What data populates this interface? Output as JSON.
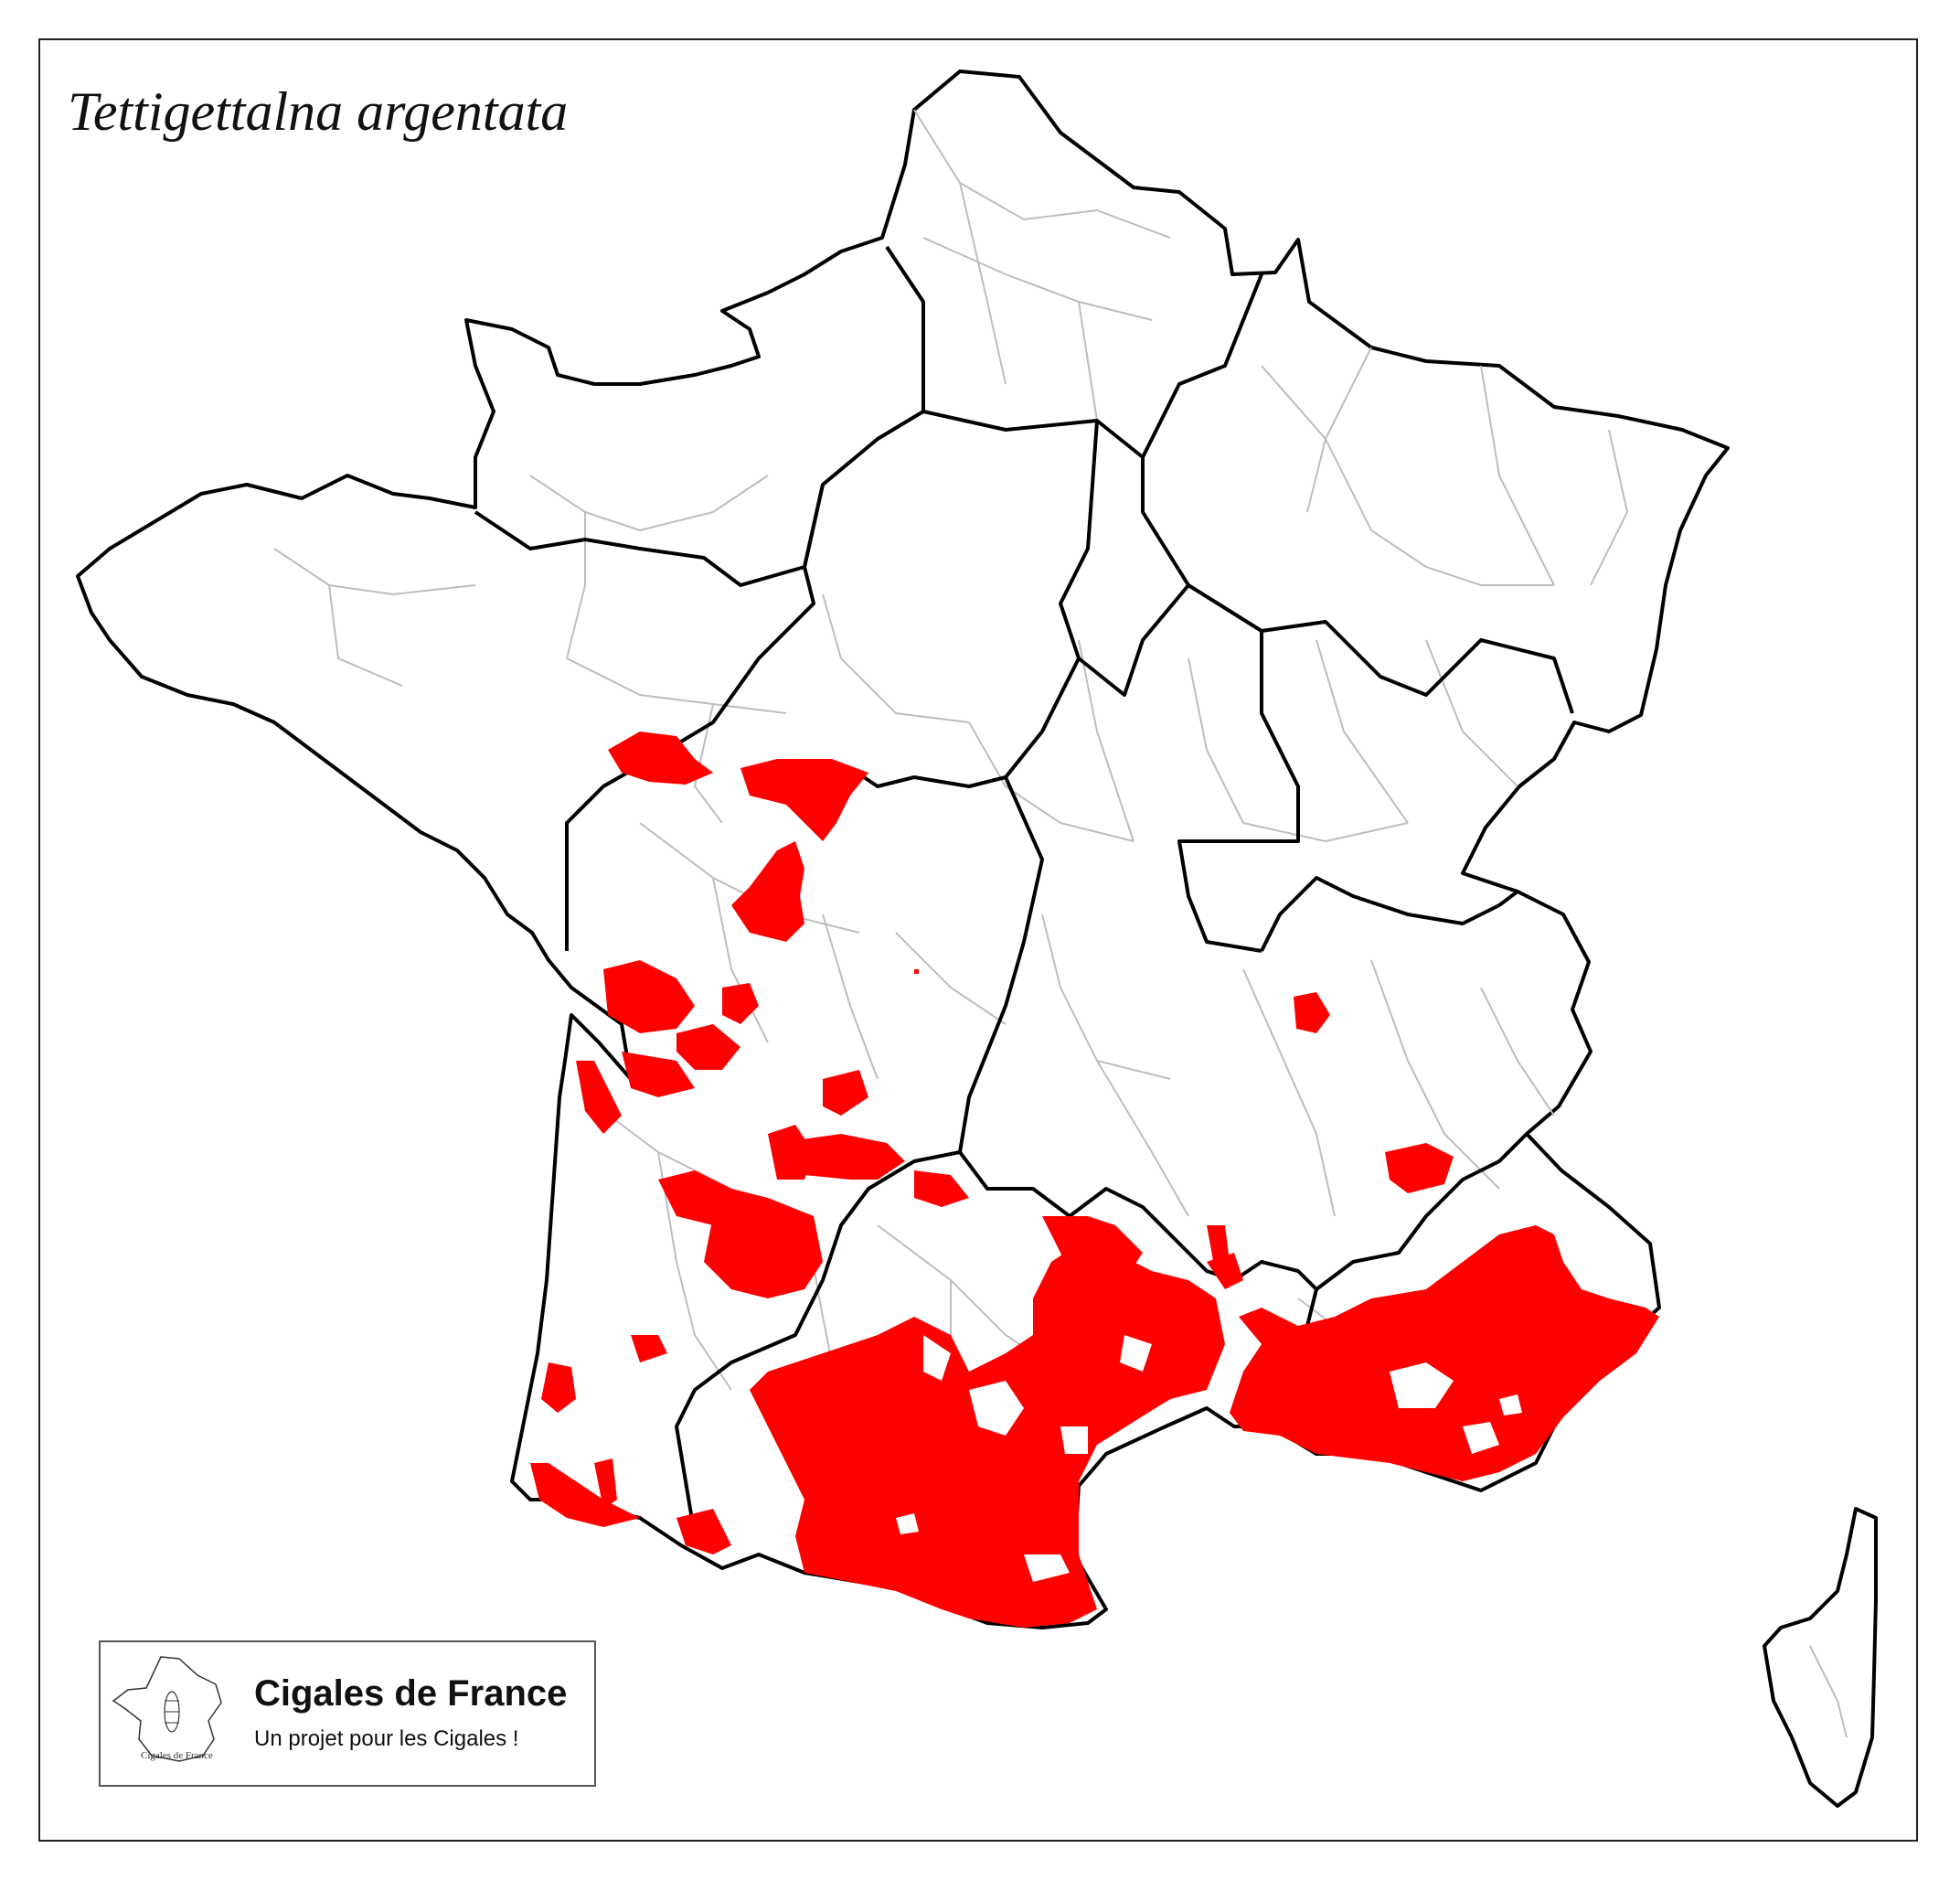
{
  "map": {
    "title": "Tettigettalna argentata",
    "region": "France",
    "legend": {
      "presence_color": "#ff0000",
      "region_border_color": "#000000",
      "department_border_color": "#bdbdbd"
    }
  },
  "logo": {
    "name": "Cigales de France",
    "tagline": "Un projet pour les Cigales !",
    "mini_caption": "Cigales de France"
  }
}
